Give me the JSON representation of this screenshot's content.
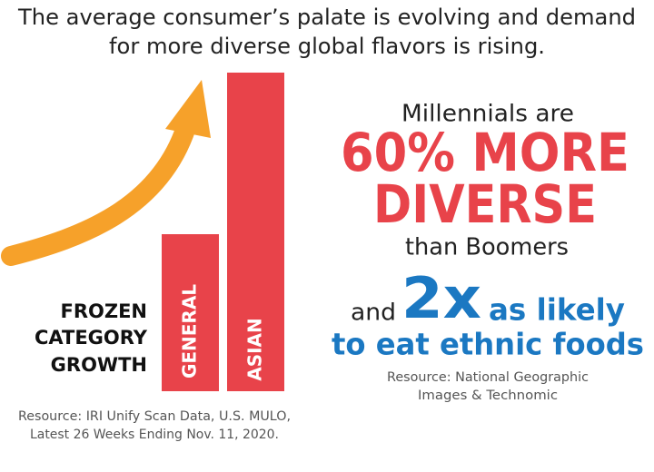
{
  "header": {
    "title_lines": [
      "The average consumer’s palate is evolving and demand",
      "for more diverse global flavors is rising."
    ]
  },
  "left": {
    "bar_labels": [
      "GENERAL",
      "ASIAN"
    ],
    "category_label_lines": [
      "FROZEN",
      "CATEGORY",
      "GROWTH"
    ],
    "source_lines": [
      "Resource: IRI Unify Scan Data, U.S. MULO,",
      "Latest 26 Weeks Ending Nov. 11, 2020."
    ]
  },
  "right": {
    "intro": "Millennials are",
    "headline_lines": [
      "60% MORE",
      "DIVERSE"
    ],
    "comparison": "than Boomers",
    "second_prefix": "and",
    "second_highlight": "2x",
    "second_suffix": "as likely",
    "second_line": "to eat ethnic foods",
    "source_lines": [
      "Resource: National Geographic",
      "Images & Technomic"
    ]
  }
}
